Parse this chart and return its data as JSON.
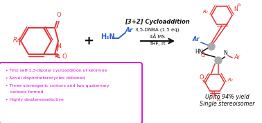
{
  "background_color": "#ffffff",
  "title_text": "[3+2] Cycloaddition",
  "condition1": "3,5-DNBA (1.5 eq)",
  "condition2": "4Å MS",
  "condition3": "THF, rt",
  "bullet_color": "#dd00dd",
  "bullet_box_edge": "#dd00dd",
  "bullets": [
    "• First self-1,3-dipolar cycloaddition of ketimine",
    "• Novel dispiroheterocycles obtained",
    "• Three stereogenic centers and two quaternary",
    "   carbons formed",
    "• Highly diastereoselective"
  ],
  "yield_line1": "Up to 94% yield",
  "yield_line2": "Single stereoisomer",
  "red": "#e83030",
  "blue": "#3060d0",
  "black": "#111111",
  "gray_spiro": "#aaaaaa",
  "arrow_color": "#111111"
}
